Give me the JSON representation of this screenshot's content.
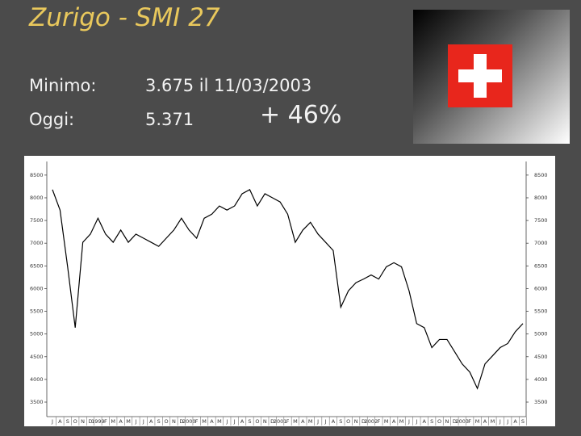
{
  "header": {
    "title": "Zurigo - SMI 27",
    "min_label": "Minimo:",
    "min_value": "3.675 il 11/03/2003",
    "today_label": "Oggi:",
    "today_value": "5.371",
    "change": "+ 46%"
  },
  "chart_data": {
    "type": "line",
    "color": "#000000",
    "categories": [
      "J",
      "A",
      "S",
      "O",
      "N",
      "D",
      "1999",
      "F",
      "M",
      "A",
      "M",
      "J",
      "J",
      "A",
      "S",
      "O",
      "N",
      "D",
      "2000",
      "F",
      "M",
      "A",
      "M",
      "J",
      "J",
      "A",
      "S",
      "O",
      "N",
      "D",
      "2001",
      "F",
      "M",
      "A",
      "M",
      "J",
      "J",
      "A",
      "S",
      "O",
      "N",
      "D",
      "2002",
      "F",
      "M",
      "A",
      "M",
      "J",
      "J",
      "A",
      "S",
      "O",
      "N",
      "D",
      "2003",
      "F",
      "M",
      "A",
      "M",
      "J",
      "J",
      "A",
      "S"
    ],
    "values": [
      8180,
      7730,
      6480,
      5140,
      7020,
      7200,
      7550,
      7200,
      7020,
      7290,
      7020,
      7200,
      7110,
      7020,
      6930,
      7110,
      7290,
      7550,
      7290,
      7110,
      7550,
      7640,
      7820,
      7730,
      7820,
      8090,
      8180,
      7820,
      8090,
      8000,
      7910,
      7640,
      7020,
      7290,
      7460,
      7200,
      7020,
      6840,
      5590,
      5950,
      6130,
      6210,
      6300,
      6210,
      6480,
      6570,
      6480,
      5950,
      5230,
      5140,
      4700,
      4880,
      4880,
      4610,
      4340,
      4160,
      3800,
      4340,
      4520,
      4700,
      4790,
      5050,
      5230
    ],
    "ylim": [
      3180,
      8800
    ],
    "yticks": [
      3500,
      4000,
      4500,
      5000,
      5500,
      6000,
      6500,
      7000,
      7500,
      8000,
      8500
    ]
  }
}
